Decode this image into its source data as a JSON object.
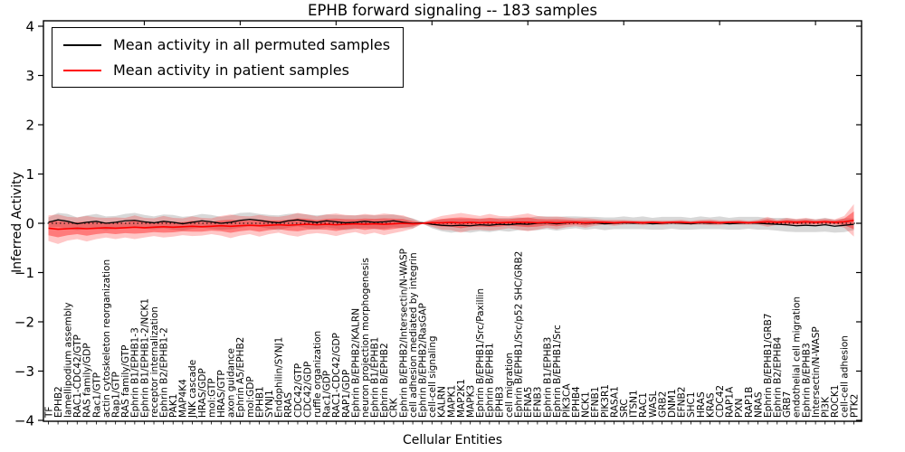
{
  "title": "EPHB forward signaling -- 183 samples",
  "legend": {
    "items": [
      {
        "label": "Mean activity in all permuted samples",
        "color": "#000000"
      },
      {
        "label": "Mean activity in patient samples",
        "color": "#ff0000"
      }
    ]
  },
  "axes": {
    "ylabel": "Inferred Activity",
    "xlabel": "Cellular Entities",
    "yticks": [
      4,
      3,
      2,
      1,
      0,
      -1,
      -2,
      -3,
      -4
    ],
    "ylim": [
      -4,
      4
    ]
  },
  "chart_data": {
    "type": "line",
    "title": "EPHB forward signaling -- 183 samples",
    "xlabel": "Cellular Entities",
    "ylabel": "Inferred Activity",
    "ylim": [
      -4,
      4
    ],
    "grid": false,
    "legend_position": "upper left",
    "zero_line": true,
    "categories": [
      "TF",
      "EPHB2",
      "lamellipodium assembly",
      "RAC1-CDC42/GTP",
      "RAS family/GDP",
      "Rac1/GTP",
      "actin cytoskeleton reorganization",
      "Rap1/GTP",
      "RAS family/GTP",
      "Ephrin B1/EPHB1-3",
      "Ephrin B1/EPHB1-2/NCK1",
      "receptor internalization",
      "Ephrin B2/EPHB1-2",
      "PAK1",
      "MAP4K4",
      "JNK cascade",
      "HRAS/GDP",
      "mol:GTP",
      "HRAS/GTP",
      "axon guidance",
      "Ephrin A5/EPHB2",
      "mol:GDP",
      "EPHB1",
      "SYNJ1",
      "Endophilin/SYNJ1",
      "RRAS",
      "CDC42/GTP",
      "CDC42/GDP",
      "ruffle organization",
      "Rac1/GDP",
      "RAC1-CDC42/GDP",
      "RAP1/GDP",
      "Ephrin B/EPHB2/KALRN",
      "neuron projection morphogenesis",
      "Ephrin B1/EPHB1",
      "Ephrin B/EPHB2",
      "CRK",
      "Ephrin B/EPHB2/Intersectin/N-WASP",
      "cell adhesion mediated by integrin",
      "Ephrin B/EPHB2/RasGAP",
      "cell-cell signaling",
      "KALRN",
      "MAPK1",
      "MAP2K1",
      "MAPK3",
      "Ephrin B/EPHB1/Src/Paxillin",
      "Ephrin B/EPHB1",
      "EPHB3",
      "cell migration",
      "Ephrin B/EPHB1/Src/p52 SHC/GRB2",
      "EFNA5",
      "EFNB3",
      "Ephrin B1/EPHB3",
      "Ephrin B/EPHB1/Src",
      "PIK3CA",
      "EPHB4",
      "NCK1",
      "EFNB1",
      "PIK3R1",
      "RASA1",
      "SRC",
      "ITSN1",
      "RAC1",
      "WASL",
      "GRB2",
      "DNM1",
      "EFNB2",
      "SHC1",
      "HRAS",
      "KRAS",
      "CDC42",
      "RAP1A",
      "PXN",
      "RAP1B",
      "NRAS",
      "Ephrin B/EPHB1/GRB7",
      "Ephrin B2/EPHB4",
      "GRB7",
      "endothelial cell migration",
      "Ephrin B/EPHB3",
      "Intersectin/N-WASP",
      "PI3K",
      "ROCK1",
      "cell-cell adhesion",
      "PTK2"
    ],
    "series": [
      {
        "name": "Mean activity in all permuted samples",
        "color": "#000000",
        "band_color": "rgba(115,115,115,0.28)",
        "values": [
          0.02,
          0.07,
          0.04,
          -0.01,
          0.02,
          0.04,
          0.0,
          0.02,
          0.05,
          0.06,
          0.03,
          0.01,
          0.04,
          0.02,
          -0.01,
          0.02,
          0.05,
          0.03,
          0.0,
          0.02,
          0.06,
          0.08,
          0.06,
          0.03,
          0.01,
          0.05,
          0.07,
          0.04,
          0.02,
          0.05,
          0.03,
          0.01,
          0.02,
          0.04,
          0.02,
          0.03,
          0.05,
          0.02,
          0.0,
          0.01,
          -0.02,
          -0.04,
          -0.05,
          -0.04,
          -0.05,
          -0.03,
          -0.04,
          -0.02,
          -0.03,
          -0.01,
          -0.02,
          0.0,
          0.01,
          -0.01,
          0.01,
          0.02,
          0.0,
          0.01,
          -0.01,
          0.0,
          0.01,
          0.0,
          0.01,
          -0.01,
          0.0,
          0.01,
          0.0,
          -0.01,
          0.01,
          0.0,
          0.01,
          -0.01,
          0.0,
          0.01,
          0.0,
          -0.01,
          -0.02,
          -0.03,
          -0.05,
          -0.04,
          -0.05,
          -0.03,
          -0.06,
          -0.04,
          -0.02
        ],
        "band_halfwidth": [
          0.1,
          0.14,
          0.15,
          0.13,
          0.14,
          0.15,
          0.14,
          0.13,
          0.14,
          0.15,
          0.14,
          0.13,
          0.14,
          0.15,
          0.14,
          0.13,
          0.14,
          0.14,
          0.13,
          0.14,
          0.15,
          0.14,
          0.13,
          0.14,
          0.15,
          0.14,
          0.13,
          0.14,
          0.14,
          0.13,
          0.14,
          0.15,
          0.14,
          0.13,
          0.14,
          0.14,
          0.13,
          0.12,
          0.1,
          0.015,
          0.08,
          0.12,
          0.14,
          0.13,
          0.14,
          0.13,
          0.14,
          0.13,
          0.14,
          0.13,
          0.13,
          0.14,
          0.13,
          0.14,
          0.13,
          0.12,
          0.13,
          0.12,
          0.13,
          0.12,
          0.13,
          0.12,
          0.13,
          0.12,
          0.13,
          0.12,
          0.13,
          0.12,
          0.13,
          0.12,
          0.13,
          0.12,
          0.13,
          0.12,
          0.13,
          0.12,
          0.13,
          0.14,
          0.13,
          0.14,
          0.13,
          0.14,
          0.13,
          0.14,
          0.12
        ]
      },
      {
        "name": "Mean activity in patient samples",
        "color": "#ff0000",
        "band_color": "rgba(255,0,0,0.22)",
        "band_inner_color": "rgba(255,0,0,0.38)",
        "values": [
          -0.1,
          -0.12,
          -0.11,
          -0.1,
          -0.11,
          -0.1,
          -0.09,
          -0.1,
          -0.09,
          -0.08,
          -0.09,
          -0.08,
          -0.07,
          -0.08,
          -0.07,
          -0.06,
          -0.07,
          -0.06,
          -0.05,
          -0.06,
          -0.05,
          -0.04,
          -0.05,
          -0.04,
          -0.03,
          -0.04,
          -0.03,
          -0.02,
          -0.03,
          -0.02,
          -0.03,
          -0.02,
          -0.01,
          -0.02,
          -0.01,
          -0.02,
          -0.01,
          0.0,
          -0.01,
          0.0,
          0.01,
          0.01,
          0.02,
          0.01,
          0.02,
          0.01,
          0.02,
          0.01,
          0.02,
          0.02,
          0.02,
          0.01,
          0.02,
          0.01,
          0.02,
          0.02,
          0.01,
          0.02,
          0.02,
          0.01,
          0.02,
          0.02,
          0.01,
          0.02,
          0.01,
          0.02,
          0.02,
          0.01,
          0.02,
          0.02,
          0.01,
          0.02,
          0.02,
          0.01,
          0.02,
          0.03,
          0.02,
          0.03,
          0.02,
          0.03,
          0.02,
          0.03,
          0.02,
          0.03,
          0.06
        ],
        "band_halfwidth": [
          0.26,
          0.3,
          0.24,
          0.22,
          0.26,
          0.22,
          0.2,
          0.22,
          0.2,
          0.24,
          0.2,
          0.18,
          0.22,
          0.19,
          0.17,
          0.2,
          0.18,
          0.16,
          0.2,
          0.24,
          0.2,
          0.18,
          0.22,
          0.18,
          0.16,
          0.2,
          0.24,
          0.2,
          0.17,
          0.2,
          0.23,
          0.19,
          0.17,
          0.21,
          0.18,
          0.22,
          0.19,
          0.16,
          0.1,
          0.015,
          0.08,
          0.14,
          0.16,
          0.2,
          0.16,
          0.14,
          0.17,
          0.14,
          0.12,
          0.15,
          0.18,
          0.14,
          0.11,
          0.13,
          0.1,
          0.08,
          0.1,
          0.07,
          0.05,
          0.06,
          0.05,
          0.04,
          0.05,
          0.04,
          0.05,
          0.04,
          0.05,
          0.04,
          0.05,
          0.06,
          0.05,
          0.04,
          0.05,
          0.04,
          0.05,
          0.1,
          0.05,
          0.08,
          0.07,
          0.08,
          0.06,
          0.07,
          0.06,
          0.12,
          0.33
        ]
      }
    ]
  }
}
